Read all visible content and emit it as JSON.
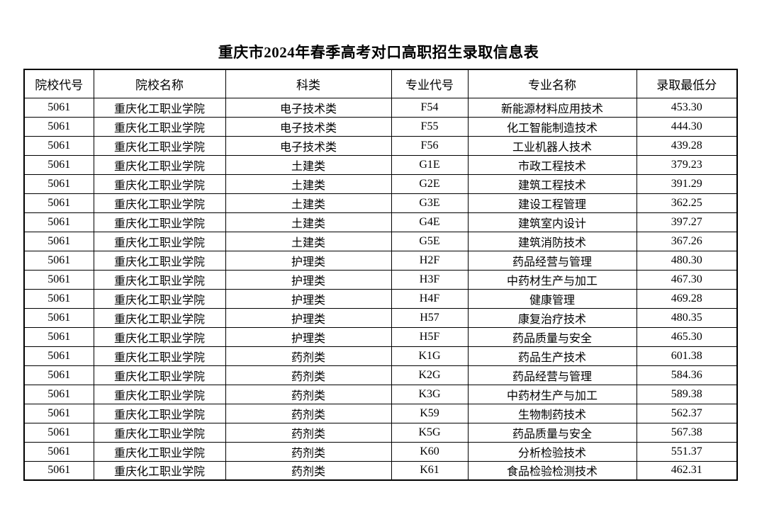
{
  "page": {
    "title": "重庆市2024年春季高考对口高职招生录取信息表"
  },
  "table": {
    "headers": [
      "院校代号",
      "院校名称",
      "科类",
      "专业代号",
      "专业名称",
      "录取最低分"
    ],
    "col_names": [
      "cell-institution-code",
      "cell-institution-name",
      "cell-subject-category",
      "cell-major-code",
      "cell-major-name",
      "cell-min-admission-score"
    ],
    "rows": [
      [
        "5061",
        "重庆化工职业学院",
        "电子技术类",
        "F54",
        "新能源材料应用技术",
        "453.30"
      ],
      [
        "5061",
        "重庆化工职业学院",
        "电子技术类",
        "F55",
        "化工智能制造技术",
        "444.30"
      ],
      [
        "5061",
        "重庆化工职业学院",
        "电子技术类",
        "F56",
        "工业机器人技术",
        "439.28"
      ],
      [
        "5061",
        "重庆化工职业学院",
        "土建类",
        "G1E",
        "市政工程技术",
        "379.23"
      ],
      [
        "5061",
        "重庆化工职业学院",
        "土建类",
        "G2E",
        "建筑工程技术",
        "391.29"
      ],
      [
        "5061",
        "重庆化工职业学院",
        "土建类",
        "G3E",
        "建设工程管理",
        "362.25"
      ],
      [
        "5061",
        "重庆化工职业学院",
        "土建类",
        "G4E",
        "建筑室内设计",
        "397.27"
      ],
      [
        "5061",
        "重庆化工职业学院",
        "土建类",
        "G5E",
        "建筑消防技术",
        "367.26"
      ],
      [
        "5061",
        "重庆化工职业学院",
        "护理类",
        "H2F",
        "药品经营与管理",
        "480.30"
      ],
      [
        "5061",
        "重庆化工职业学院",
        "护理类",
        "H3F",
        "中药材生产与加工",
        "467.30"
      ],
      [
        "5061",
        "重庆化工职业学院",
        "护理类",
        "H4F",
        "健康管理",
        "469.28"
      ],
      [
        "5061",
        "重庆化工职业学院",
        "护理类",
        "H57",
        "康复治疗技术",
        "480.35"
      ],
      [
        "5061",
        "重庆化工职业学院",
        "护理类",
        "H5F",
        "药品质量与安全",
        "465.30"
      ],
      [
        "5061",
        "重庆化工职业学院",
        "药剂类",
        "K1G",
        "药品生产技术",
        "601.38"
      ],
      [
        "5061",
        "重庆化工职业学院",
        "药剂类",
        "K2G",
        "药品经营与管理",
        "584.36"
      ],
      [
        "5061",
        "重庆化工职业学院",
        "药剂类",
        "K3G",
        "中药材生产与加工",
        "589.38"
      ],
      [
        "5061",
        "重庆化工职业学院",
        "药剂类",
        "K59",
        "生物制药技术",
        "562.37"
      ],
      [
        "5061",
        "重庆化工职业学院",
        "药剂类",
        "K5G",
        "药品质量与安全",
        "567.38"
      ],
      [
        "5061",
        "重庆化工职业学院",
        "药剂类",
        "K60",
        "分析检验技术",
        "551.37"
      ],
      [
        "5061",
        "重庆化工职业学院",
        "药剂类",
        "K61",
        "食品检验检测技术",
        "462.31"
      ]
    ]
  },
  "colors": {
    "page_background": "#ffffff",
    "text": "#000000",
    "border": "#000000"
  }
}
